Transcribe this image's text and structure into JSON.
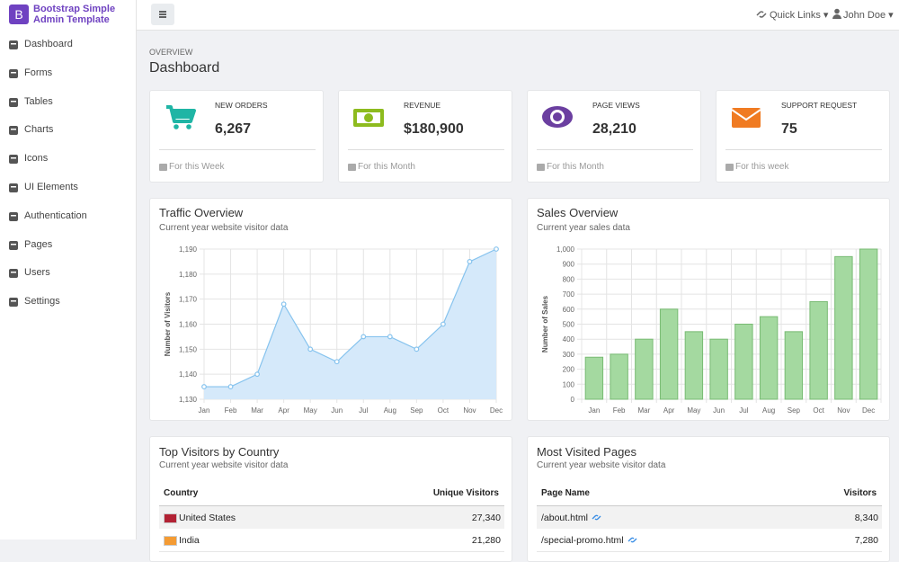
{
  "brand": {
    "logo": "B",
    "title": "Bootstrap Simple Admin Template"
  },
  "nav": [
    "Dashboard",
    "Forms",
    "Tables",
    "Charts",
    "Icons",
    "UI Elements",
    "Authentication",
    "Pages",
    "Users",
    "Settings"
  ],
  "topbar": {
    "quick_links": "Quick Links",
    "user": "John Doe"
  },
  "page": {
    "overline": "OVERVIEW",
    "title": "Dashboard"
  },
  "cards": [
    {
      "label": "NEW ORDERS",
      "value": "6,267",
      "footer": "For this Week"
    },
    {
      "label": "REVENUE",
      "value": "$180,900",
      "footer": "For this Month"
    },
    {
      "label": "PAGE VIEWS",
      "value": "28,210",
      "footer": "For this Month"
    },
    {
      "label": "SUPPORT REQUEST",
      "value": "75",
      "footer": "For this week"
    }
  ],
  "chart_data": [
    {
      "type": "line",
      "title": "Traffic Overview",
      "subtitle": "Current year website visitor data",
      "y_label": "Number of Visitors",
      "categories": [
        "Jan",
        "Feb",
        "Mar",
        "Apr",
        "May",
        "Jun",
        "Jul",
        "Aug",
        "Sep",
        "Oct",
        "Nov",
        "Dec"
      ],
      "values": [
        1135,
        1135,
        1140,
        1168,
        1150,
        1145,
        1155,
        1155,
        1150,
        1160,
        1185,
        1190
      ],
      "color": "#86c3ee",
      "fill": "#d5e9fa",
      "ylim": [
        1130,
        1190
      ],
      "yticks": [
        {
          "value": 1130,
          "label": "1,130"
        },
        {
          "value": 1140,
          "label": "1,140"
        },
        {
          "value": 1150,
          "label": "1,150"
        },
        {
          "value": 1160,
          "label": "1,160"
        },
        {
          "value": 1170,
          "label": "1,170"
        },
        {
          "value": 1180,
          "label": "1,180"
        },
        {
          "value": 1190,
          "label": "1,190"
        }
      ],
      "grid": true
    },
    {
      "type": "bar",
      "title": "Sales Overview",
      "subtitle": "Current year sales data",
      "y_label": "Number of Sales",
      "categories": [
        "Jan",
        "Feb",
        "Mar",
        "Apr",
        "May",
        "Jun",
        "Jul",
        "Aug",
        "Sep",
        "Oct",
        "Nov",
        "Dec"
      ],
      "values": [
        280,
        300,
        400,
        600,
        450,
        400,
        500,
        550,
        450,
        650,
        950,
        1000
      ],
      "color": "#a4d9a0",
      "stroke": "#78bb73",
      "ylim": [
        0,
        1000
      ],
      "yticks": [
        0,
        100,
        200,
        300,
        400,
        500,
        600,
        700,
        800,
        900,
        {
          "value": 1000,
          "label": "1,000"
        }
      ],
      "grid": true
    }
  ],
  "tables": [
    {
      "title": "Top Visitors by Country",
      "subtitle": "Current year website visitor data",
      "columns": [
        "Country",
        "Unique Visitors"
      ],
      "rows": [
        [
          "United States",
          "27,340"
        ],
        [
          "India",
          "21,280"
        ]
      ]
    },
    {
      "title": "Most Visited Pages",
      "subtitle": "Current year website visitor data",
      "columns": [
        "Page Name",
        "Visitors"
      ],
      "rows": [
        [
          "/about.html",
          "8,340"
        ],
        [
          "/special-promo.html",
          "7,280"
        ]
      ]
    }
  ]
}
